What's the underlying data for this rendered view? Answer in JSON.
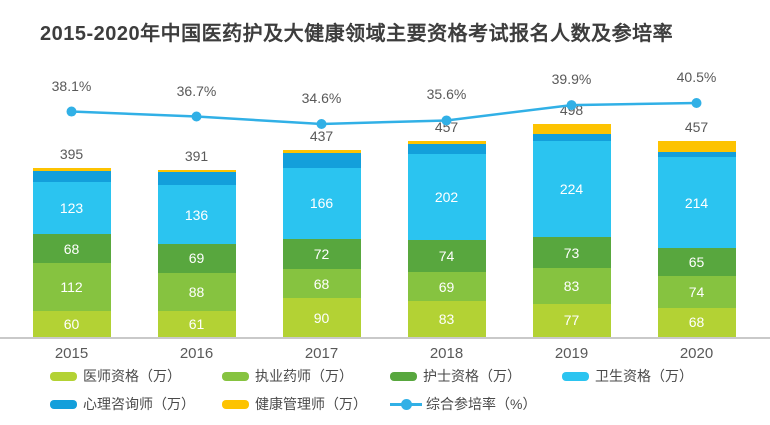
{
  "title": "2015-2020年中国医药护及大健康领域主要资格考试报名人数及参培率",
  "colors": {
    "title_text": "#3d3d3d",
    "axis_text": "#595959",
    "legend_text": "#4a4a4a",
    "baseline": "#c9c9c9",
    "segment_label_text": "#ffffff",
    "background": "#ffffff"
  },
  "chart_data": {
    "type": "bar",
    "subtype": "stacked-bars-with-line-overlay",
    "title": "2015-2020年中国医药护及大健康领域主要资格考试报名人数及参培率",
    "categories": [
      "2015",
      "2016",
      "2017",
      "2018",
      "2019",
      "2020"
    ],
    "series": [
      {
        "name": "医师资格（万）",
        "color": "#b3d234",
        "values": [
          60,
          61,
          90,
          83,
          77,
          68
        ],
        "labeled": true
      },
      {
        "name": "执业药师（万）",
        "color": "#86c340",
        "values": [
          112,
          88,
          68,
          69,
          83,
          74
        ],
        "labeled": true
      },
      {
        "name": "护士资格（万）",
        "color": "#58a73e",
        "values": [
          68,
          69,
          72,
          74,
          73,
          65
        ],
        "labeled": true
      },
      {
        "name": "卫生资格（万）",
        "color": "#2bc4f0",
        "values": [
          123,
          136,
          166,
          202,
          224,
          214
        ],
        "labeled": true
      },
      {
        "name": "心理咨询师（万）",
        "color": "#139fdb",
        "values": [
          26,
          31,
          34,
          24,
          17,
          12
        ],
        "labeled": false,
        "estimated_from_pixels": true
      },
      {
        "name": "健康管理师（万）",
        "color": "#fdc301",
        "values": [
          6,
          6,
          7,
          5,
          24,
          24
        ],
        "labeled": false,
        "estimated_from_pixels": true
      }
    ],
    "stack_totals": [
      395,
      391,
      437,
      457,
      498,
      457
    ],
    "line_series": {
      "name": "综合参培率（%）",
      "color": "#31b0e6",
      "values": [
        38.1,
        36.7,
        34.6,
        35.6,
        39.9,
        40.5
      ],
      "value_suffix": "%"
    },
    "xlabel": "",
    "ylabel": "",
    "grid": false,
    "axis_ticks_visible": false,
    "value_labels_visible": true,
    "legend_position": "bottom"
  },
  "legend": {
    "rows": [
      [
        {
          "type": "swatch",
          "label": "医师资格（万）",
          "color": "#b3d234"
        },
        {
          "type": "swatch",
          "label": "执业药师（万）",
          "color": "#86c340"
        },
        {
          "type": "swatch",
          "label": "护士资格（万）",
          "color": "#58a73e"
        },
        {
          "type": "swatch",
          "label": "卫生资格（万）",
          "color": "#2bc4f0"
        }
      ],
      [
        {
          "type": "swatch",
          "label": "心理咨询师（万）",
          "color": "#139fdb"
        },
        {
          "type": "swatch",
          "label": "健康管理师（万）",
          "color": "#fdc301"
        },
        {
          "type": "line",
          "label": "综合参培率（%）",
          "color": "#31b0e6"
        }
      ]
    ]
  }
}
